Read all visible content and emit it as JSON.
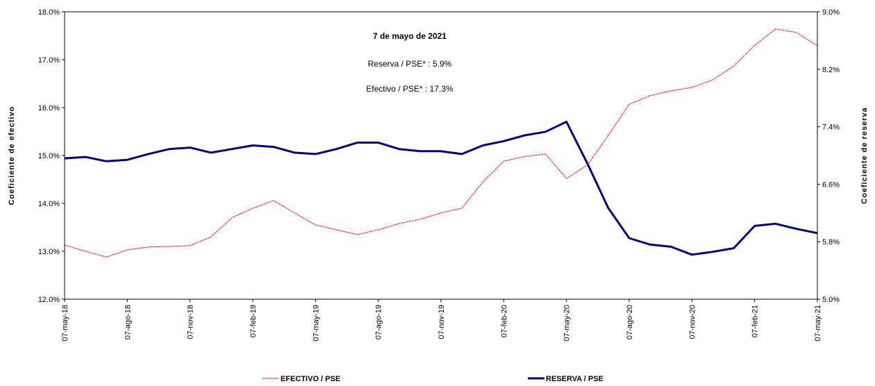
{
  "chart_data": {
    "type": "line",
    "annotations": [
      "7 de mayo de 2021",
      "Reserva / PSE* :   5.9%",
      "Efectivo / PSE* : 17.3%"
    ],
    "ylabel": "Coeficiente de efectivo",
    "y2label": "Coeficiente de reserva",
    "x": [
      0,
      1,
      2,
      3,
      4,
      5,
      6,
      7,
      8,
      9,
      10,
      11,
      12,
      13,
      14,
      15,
      16,
      17,
      18,
      19,
      20,
      21,
      22,
      23,
      24,
      25,
      26,
      27,
      28,
      29,
      30,
      31,
      32,
      33,
      34,
      35,
      36
    ],
    "xlim": [
      0,
      36
    ],
    "xticks": [
      {
        "value": 0,
        "label": "07-may-18"
      },
      {
        "value": 3,
        "label": "07-ago-18"
      },
      {
        "value": 6,
        "label": "07-nov-18"
      },
      {
        "value": 9,
        "label": "07-feb-19"
      },
      {
        "value": 12,
        "label": "07-may-19"
      },
      {
        "value": 15,
        "label": "07-ago-19"
      },
      {
        "value": 18,
        "label": "07-nov-19"
      },
      {
        "value": 21,
        "label": "07-feb-20"
      },
      {
        "value": 24,
        "label": "07-may-20"
      },
      {
        "value": 27,
        "label": "07-ago-20"
      },
      {
        "value": 30,
        "label": "07-nov-20"
      },
      {
        "value": 33,
        "label": "07-feb-21"
      },
      {
        "value": 36,
        "label": "07-may-21"
      }
    ],
    "ylim": [
      12,
      18
    ],
    "yticks": [
      {
        "value": 12,
        "label": "12.0%"
      },
      {
        "value": 13,
        "label": "13.0%"
      },
      {
        "value": 14,
        "label": "14.0%"
      },
      {
        "value": 15,
        "label": "15.0%"
      },
      {
        "value": 16,
        "label": "16.0%"
      },
      {
        "value": 17,
        "label": "17.0%"
      },
      {
        "value": 18,
        "label": "18.0%"
      }
    ],
    "y2lim": [
      5,
      9
    ],
    "y2ticks": [
      {
        "value": 5,
        "label": "5.0%"
      },
      {
        "value": 5.8,
        "label": "5.8%"
      },
      {
        "value": 6.6,
        "label": "6.6%"
      },
      {
        "value": 7.4,
        "label": "7.4%"
      },
      {
        "value": 8.2,
        "label": "8.2%"
      },
      {
        "value": 9,
        "label": "9.0%"
      }
    ],
    "series": [
      {
        "name": "EFECTIVO / PSE",
        "color": "#ff0000",
        "values": [
          13.13,
          13.0,
          12.88,
          13.03,
          13.09,
          13.1,
          13.12,
          13.3,
          13.7,
          13.9,
          14.06,
          13.8,
          13.55,
          13.45,
          13.35,
          13.45,
          13.58,
          13.67,
          13.8,
          13.9,
          14.45,
          14.88,
          14.98,
          15.03,
          14.52,
          14.8,
          15.42,
          16.07,
          16.25,
          16.35,
          16.42,
          16.58,
          16.87,
          17.3,
          17.64,
          17.57,
          17.29
        ]
      },
      {
        "name": "RESERVA / PSE",
        "color": "#000080",
        "axis": "y2",
        "values": [
          6.96,
          6.98,
          6.92,
          6.94,
          7.02,
          7.09,
          7.11,
          7.04,
          7.09,
          7.14,
          7.12,
          7.04,
          7.02,
          7.09,
          7.18,
          7.18,
          7.09,
          7.06,
          7.06,
          7.02,
          7.14,
          7.2,
          7.28,
          7.33,
          7.47,
          6.89,
          6.27,
          5.85,
          5.76,
          5.73,
          5.62,
          5.66,
          5.71,
          6.02,
          6.05,
          5.98,
          5.92
        ]
      }
    ]
  }
}
